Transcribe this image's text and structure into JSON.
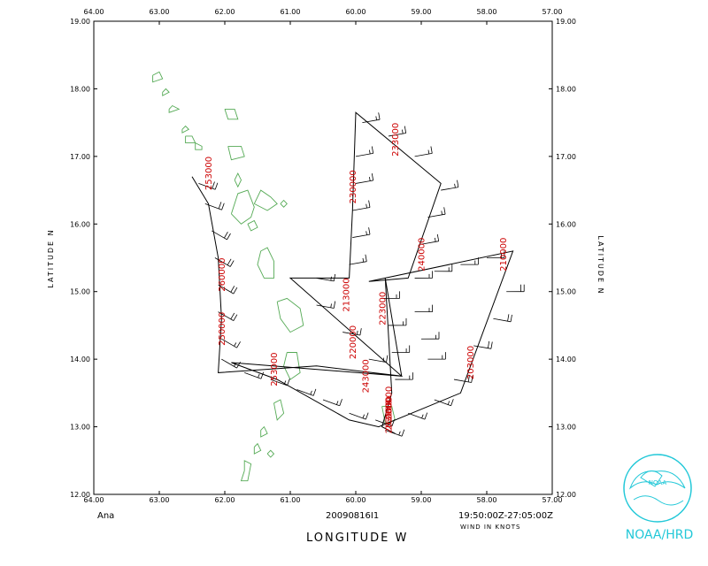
{
  "storm_name": "Ana",
  "flight_id": "20090816I1",
  "time_range": "19:50:00Z-27:05:00Z",
  "wind_units_label": "WIND IN KNOTS",
  "x_axis_title": "LONGITUDE  W",
  "y_axis_title_left": "LATITUDE  N",
  "y_axis_title_right": "LATITUDE  N",
  "logo_label": "NOAA/HRD",
  "logo_seal_text": "NOAA",
  "colors": {
    "time_labels": "#cc0000",
    "coastline": "#55aa55",
    "logo": "#22c8d8",
    "track": "#000000"
  },
  "axes": {
    "lon_ticks": [
      "64.00",
      "63.00",
      "62.00",
      "61.00",
      "60.00",
      "59.00",
      "58.00",
      "57.00"
    ],
    "lat_ticks": [
      "12.00",
      "13.00",
      "14.00",
      "15.00",
      "16.00",
      "17.00",
      "18.00",
      "19.00"
    ],
    "lon_range_west": [
      64.0,
      57.0
    ],
    "lat_range": [
      12.0,
      19.0
    ]
  },
  "time_labels": [
    {
      "text": "203000",
      "lon": 58.2,
      "lat": 13.7
    },
    {
      "text": "210000",
      "lon": 57.7,
      "lat": 15.3
    },
    {
      "text": "213000",
      "lon": 60.1,
      "lat": 14.7
    },
    {
      "text": "220000",
      "lon": 60.0,
      "lat": 14.0
    },
    {
      "text": "223000",
      "lon": 59.55,
      "lat": 14.5
    },
    {
      "text": "230000",
      "lon": 60.0,
      "lat": 16.3
    },
    {
      "text": "233000",
      "lon": 59.35,
      "lat": 17.0
    },
    {
      "text": "240000",
      "lon": 58.95,
      "lat": 15.3
    },
    {
      "text": "243000",
      "lon": 59.8,
      "lat": 13.5
    },
    {
      "text": "250000",
      "lon": 62.0,
      "lat": 14.2
    },
    {
      "text": "253000",
      "lon": 61.2,
      "lat": 13.6
    },
    {
      "text": "260000",
      "lon": 59.45,
      "lat": 12.95
    },
    {
      "text": "263000",
      "lon": 59.45,
      "lat": 12.9
    },
    {
      "text": "253000",
      "lon": 62.2,
      "lat": 16.5
    },
    {
      "text": "260000",
      "lon": 62.0,
      "lat": 15.0
    },
    {
      "text": "260000",
      "lon": 59.45,
      "lat": 13.1
    }
  ],
  "flight_track": [
    [
      62.5,
      16.7
    ],
    [
      62.25,
      16.3
    ],
    [
      62.1,
      15.5
    ],
    [
      62.05,
      14.6
    ],
    [
      62.1,
      13.8
    ],
    [
      60.6,
      13.9
    ],
    [
      59.3,
      13.75
    ],
    [
      61.0,
      15.2
    ],
    [
      60.1,
      15.2
    ],
    [
      60.05,
      16.2
    ],
    [
      60.0,
      17.65
    ],
    [
      58.7,
      16.6
    ],
    [
      59.2,
      15.2
    ],
    [
      59.8,
      15.15
    ],
    [
      57.6,
      15.6
    ],
    [
      58.4,
      13.5
    ],
    [
      59.65,
      13.0
    ],
    [
      60.1,
      13.1
    ],
    [
      61.2,
      13.7
    ],
    [
      61.9,
      13.95
    ],
    [
      59.3,
      13.75
    ],
    [
      59.55,
      15.2
    ],
    [
      59.45,
      13.5
    ],
    [
      59.6,
      13.0
    ],
    [
      59.4,
      12.9
    ]
  ],
  "wind_barbs": [
    {
      "lon": 62.4,
      "lat": 16.6,
      "dir": 110,
      "speed": 20
    },
    {
      "lon": 62.3,
      "lat": 16.3,
      "dir": 110,
      "speed": 20
    },
    {
      "lon": 62.2,
      "lat": 15.9,
      "dir": 120,
      "speed": 20
    },
    {
      "lon": 62.15,
      "lat": 15.5,
      "dir": 120,
      "speed": 20
    },
    {
      "lon": 62.1,
      "lat": 15.1,
      "dir": 120,
      "speed": 20
    },
    {
      "lon": 62.1,
      "lat": 14.7,
      "dir": 120,
      "speed": 20
    },
    {
      "lon": 62.05,
      "lat": 14.3,
      "dir": 120,
      "speed": 15
    },
    {
      "lon": 62.05,
      "lat": 14.0,
      "dir": 120,
      "speed": 15
    },
    {
      "lon": 61.7,
      "lat": 13.8,
      "dir": 110,
      "speed": 15
    },
    {
      "lon": 61.3,
      "lat": 13.7,
      "dir": 110,
      "speed": 15
    },
    {
      "lon": 60.9,
      "lat": 13.55,
      "dir": 110,
      "speed": 15
    },
    {
      "lon": 60.5,
      "lat": 13.4,
      "dir": 110,
      "speed": 15
    },
    {
      "lon": 60.1,
      "lat": 13.2,
      "dir": 110,
      "speed": 15
    },
    {
      "lon": 59.7,
      "lat": 13.1,
      "dir": 110,
      "speed": 15
    },
    {
      "lon": 59.2,
      "lat": 13.2,
      "dir": 110,
      "speed": 15
    },
    {
      "lon": 58.8,
      "lat": 13.4,
      "dir": 110,
      "speed": 15
    },
    {
      "lon": 58.5,
      "lat": 13.7,
      "dir": 100,
      "speed": 20
    },
    {
      "lon": 58.2,
      "lat": 14.2,
      "dir": 100,
      "speed": 20
    },
    {
      "lon": 57.9,
      "lat": 14.6,
      "dir": 100,
      "speed": 20
    },
    {
      "lon": 57.7,
      "lat": 15.0,
      "dir": 90,
      "speed": 20
    },
    {
      "lon": 58.0,
      "lat": 15.5,
      "dir": 90,
      "speed": 15
    },
    {
      "lon": 58.4,
      "lat": 15.4,
      "dir": 90,
      "speed": 15
    },
    {
      "lon": 58.8,
      "lat": 15.3,
      "dir": 90,
      "speed": 15
    },
    {
      "lon": 59.1,
      "lat": 15.2,
      "dir": 90,
      "speed": 15
    },
    {
      "lon": 59.0,
      "lat": 15.7,
      "dir": 80,
      "speed": 15
    },
    {
      "lon": 58.9,
      "lat": 16.1,
      "dir": 80,
      "speed": 15
    },
    {
      "lon": 58.7,
      "lat": 16.5,
      "dir": 80,
      "speed": 15
    },
    {
      "lon": 59.1,
      "lat": 17.0,
      "dir": 80,
      "speed": 15
    },
    {
      "lon": 59.5,
      "lat": 17.3,
      "dir": 80,
      "speed": 15
    },
    {
      "lon": 59.9,
      "lat": 17.5,
      "dir": 80,
      "speed": 15
    },
    {
      "lon": 60.0,
      "lat": 17.0,
      "dir": 80,
      "speed": 15
    },
    {
      "lon": 60.0,
      "lat": 16.6,
      "dir": 80,
      "speed": 15
    },
    {
      "lon": 60.05,
      "lat": 16.2,
      "dir": 80,
      "speed": 15
    },
    {
      "lon": 60.05,
      "lat": 15.8,
      "dir": 80,
      "speed": 15
    },
    {
      "lon": 60.1,
      "lat": 15.4,
      "dir": 80,
      "speed": 15
    },
    {
      "lon": 60.6,
      "lat": 15.2,
      "dir": 100,
      "speed": 15
    },
    {
      "lon": 60.6,
      "lat": 14.8,
      "dir": 100,
      "speed": 15
    },
    {
      "lon": 60.2,
      "lat": 14.4,
      "dir": 100,
      "speed": 15
    },
    {
      "lon": 59.8,
      "lat": 14.0,
      "dir": 100,
      "speed": 15
    },
    {
      "lon": 59.6,
      "lat": 14.9,
      "dir": 90,
      "speed": 15
    },
    {
      "lon": 59.5,
      "lat": 14.5,
      "dir": 90,
      "speed": 15
    },
    {
      "lon": 59.45,
      "lat": 14.1,
      "dir": 90,
      "speed": 15
    },
    {
      "lon": 59.4,
      "lat": 13.7,
      "dir": 90,
      "speed": 15
    },
    {
      "lon": 59.1,
      "lat": 14.7,
      "dir": 90,
      "speed": 15
    },
    {
      "lon": 59.0,
      "lat": 14.3,
      "dir": 90,
      "speed": 15
    },
    {
      "lon": 58.9,
      "lat": 14.0,
      "dir": 90,
      "speed": 15
    },
    {
      "lon": 59.55,
      "lat": 12.95,
      "dir": 110,
      "speed": 15
    }
  ],
  "coastlines": [
    [
      [
        63.1,
        18.2
      ],
      [
        63.0,
        18.25
      ],
      [
        62.95,
        18.15
      ],
      [
        63.1,
        18.1
      ],
      [
        63.1,
        18.2
      ]
    ],
    [
      [
        62.85,
        17.7
      ],
      [
        62.8,
        17.75
      ],
      [
        62.7,
        17.7
      ],
      [
        62.85,
        17.65
      ],
      [
        62.85,
        17.7
      ]
    ],
    [
      [
        62.0,
        17.7
      ],
      [
        61.85,
        17.7
      ],
      [
        61.8,
        17.55
      ],
      [
        61.95,
        17.55
      ],
      [
        62.0,
        17.7
      ]
    ],
    [
      [
        62.65,
        17.4
      ],
      [
        62.6,
        17.45
      ],
      [
        62.55,
        17.4
      ],
      [
        62.65,
        17.35
      ],
      [
        62.65,
        17.4
      ]
    ],
    [
      [
        62.95,
        17.95
      ],
      [
        62.9,
        18.0
      ],
      [
        62.85,
        17.95
      ],
      [
        62.95,
        17.9
      ],
      [
        62.95,
        17.95
      ]
    ],
    [
      [
        62.6,
        17.3
      ],
      [
        62.5,
        17.3
      ],
      [
        62.45,
        17.2
      ],
      [
        62.6,
        17.2
      ],
      [
        62.6,
        17.3
      ]
    ],
    [
      [
        62.45,
        17.2
      ],
      [
        62.35,
        17.15
      ],
      [
        62.35,
        17.1
      ],
      [
        62.45,
        17.1
      ],
      [
        62.45,
        17.2
      ]
    ],
    [
      [
        61.95,
        17.15
      ],
      [
        61.75,
        17.15
      ],
      [
        61.7,
        17.0
      ],
      [
        61.9,
        16.95
      ],
      [
        61.95,
        17.15
      ]
    ],
    [
      [
        61.85,
        16.65
      ],
      [
        61.8,
        16.75
      ],
      [
        61.75,
        16.65
      ],
      [
        61.8,
        16.55
      ],
      [
        61.85,
        16.65
      ]
    ],
    [
      [
        61.9,
        16.15
      ],
      [
        61.8,
        16.45
      ],
      [
        61.65,
        16.5
      ],
      [
        61.55,
        16.25
      ],
      [
        61.6,
        16.1
      ],
      [
        61.75,
        16.0
      ],
      [
        61.9,
        16.15
      ]
    ],
    [
      [
        61.55,
        16.3
      ],
      [
        61.45,
        16.5
      ],
      [
        61.3,
        16.4
      ],
      [
        61.2,
        16.3
      ],
      [
        61.35,
        16.2
      ],
      [
        61.55,
        16.3
      ]
    ],
    [
      [
        61.15,
        16.3
      ],
      [
        61.1,
        16.35
      ],
      [
        61.05,
        16.3
      ],
      [
        61.1,
        16.25
      ],
      [
        61.15,
        16.3
      ]
    ],
    [
      [
        61.65,
        16.0
      ],
      [
        61.55,
        16.05
      ],
      [
        61.5,
        15.95
      ],
      [
        61.6,
        15.9
      ],
      [
        61.65,
        16.0
      ]
    ],
    [
      [
        61.45,
        15.6
      ],
      [
        61.35,
        15.65
      ],
      [
        61.25,
        15.45
      ],
      [
        61.25,
        15.2
      ],
      [
        61.4,
        15.2
      ],
      [
        61.5,
        15.4
      ],
      [
        61.45,
        15.6
      ]
    ],
    [
      [
        61.2,
        14.85
      ],
      [
        61.05,
        14.9
      ],
      [
        60.85,
        14.75
      ],
      [
        60.8,
        14.5
      ],
      [
        61.0,
        14.4
      ],
      [
        61.15,
        14.6
      ],
      [
        61.2,
        14.85
      ]
    ],
    [
      [
        61.05,
        14.1
      ],
      [
        60.9,
        14.1
      ],
      [
        60.85,
        13.8
      ],
      [
        61.0,
        13.7
      ],
      [
        61.1,
        13.9
      ],
      [
        61.05,
        14.1
      ]
    ],
    [
      [
        61.25,
        13.35
      ],
      [
        61.15,
        13.4
      ],
      [
        61.1,
        13.2
      ],
      [
        61.2,
        13.1
      ],
      [
        61.25,
        13.35
      ]
    ],
    [
      [
        61.45,
        12.95
      ],
      [
        61.4,
        13.0
      ],
      [
        61.35,
        12.9
      ],
      [
        61.45,
        12.85
      ],
      [
        61.45,
        12.95
      ]
    ],
    [
      [
        61.55,
        12.7
      ],
      [
        61.5,
        12.75
      ],
      [
        61.45,
        12.65
      ],
      [
        61.55,
        12.6
      ],
      [
        61.55,
        12.7
      ]
    ],
    [
      [
        61.7,
        12.35
      ],
      [
        61.7,
        12.5
      ],
      [
        61.6,
        12.45
      ],
      [
        61.65,
        12.2
      ],
      [
        61.75,
        12.2
      ],
      [
        61.7,
        12.35
      ]
    ],
    [
      [
        61.35,
        12.6
      ],
      [
        61.3,
        12.65
      ],
      [
        61.25,
        12.6
      ],
      [
        61.3,
        12.55
      ],
      [
        61.35,
        12.6
      ]
    ],
    [
      [
        59.6,
        13.3
      ],
      [
        59.45,
        13.3
      ],
      [
        59.4,
        13.1
      ],
      [
        59.55,
        13.05
      ],
      [
        59.6,
        13.3
      ]
    ]
  ]
}
